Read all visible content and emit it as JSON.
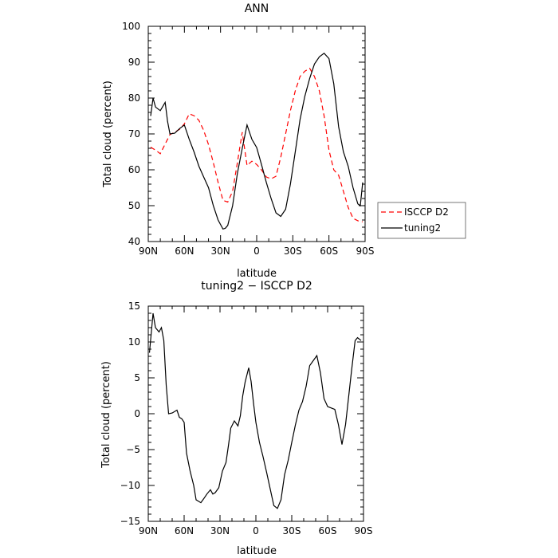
{
  "chart_data": [
    {
      "type": "line",
      "title": "ANN",
      "xlabel": "latitude",
      "ylabel": "Total cloud (percent)",
      "xlim": [
        90,
        -90
      ],
      "ylim": [
        40,
        100
      ],
      "x_ticks": [
        90,
        60,
        30,
        0,
        -30,
        -60,
        -90
      ],
      "x_tick_labels": [
        "90N",
        "60N",
        "30N",
        "0",
        "30S",
        "60S",
        "90S"
      ],
      "y_ticks": [
        40,
        50,
        60,
        70,
        80,
        90,
        100
      ],
      "y_tick_labels": [
        "40",
        "50",
        "60",
        "70",
        "80",
        "90",
        "100"
      ],
      "legend_position": "right",
      "series": [
        {
          "name": "ISCCP D2",
          "color": "#ff0000",
          "style": "dashed",
          "x": [
            88,
            84,
            80,
            76,
            72,
            68,
            64,
            60,
            56,
            52,
            48,
            44,
            40,
            36,
            32,
            28,
            24,
            20,
            16,
            12,
            8,
            4,
            0,
            -4,
            -8,
            -12,
            -16,
            -20,
            -24,
            -28,
            -32,
            -36,
            -40,
            -44,
            -48,
            -52,
            -56,
            -60,
            -64,
            -68,
            -72,
            -76,
            -80,
            -84,
            -88
          ],
          "values": [
            66.3,
            65.5,
            64.5,
            67.2,
            69.8,
            70.5,
            71.3,
            72.8,
            75.6,
            75.1,
            73.8,
            71.0,
            67.0,
            62.0,
            56.5,
            51.5,
            51.0,
            54.0,
            62.0,
            70.5,
            61.2,
            62.4,
            61.5,
            60.0,
            58.0,
            57.5,
            58.2,
            63.5,
            70.0,
            76.5,
            82.0,
            86.0,
            87.5,
            88.3,
            86.0,
            82.0,
            75.0,
            65.5,
            60.0,
            58.5,
            54.0,
            49.5,
            46.5,
            45.8,
            45.5
          ]
        },
        {
          "name": "tuning2",
          "color": "#000000",
          "style": "solid",
          "x": [
            88,
            86,
            84,
            80,
            76,
            74,
            72,
            68,
            64,
            60,
            56,
            52,
            48,
            44,
            40,
            36,
            32,
            28,
            26,
            24,
            20,
            16,
            12,
            8,
            4,
            0,
            -4,
            -8,
            -12,
            -16,
            -20,
            -24,
            -28,
            -32,
            -36,
            -40,
            -44,
            -48,
            -52,
            -56,
            -60,
            -64,
            -68,
            -72,
            -76,
            -80,
            -84,
            -86,
            -88
          ],
          "values": [
            75.0,
            80.0,
            77.5,
            76.5,
            78.8,
            73.5,
            70.0,
            70.2,
            71.5,
            72.5,
            68.5,
            65.0,
            61.0,
            58.0,
            55.0,
            50.0,
            46.0,
            43.5,
            43.7,
            44.5,
            50.0,
            59.0,
            66.0,
            72.5,
            68.5,
            66.2,
            61.5,
            56.5,
            52.0,
            48.0,
            47.0,
            49.0,
            56.0,
            65.0,
            74.0,
            80.5,
            85.5,
            89.5,
            91.5,
            92.5,
            91.0,
            84.0,
            72.0,
            65.0,
            61.0,
            55.0,
            50.5,
            50.0,
            56.5
          ]
        }
      ]
    },
    {
      "type": "line",
      "title": "tuning2 − ISCCP D2",
      "xlabel": "latitude",
      "ylabel": "Total cloud (percent)",
      "xlim": [
        90,
        -90
      ],
      "ylim": [
        -15,
        15
      ],
      "x_ticks": [
        90,
        60,
        30,
        0,
        -30,
        -60,
        -90
      ],
      "x_tick_labels": [
        "90N",
        "60N",
        "30N",
        "0",
        "30S",
        "60S",
        "90S"
      ],
      "y_ticks": [
        -15,
        -10,
        -5,
        0,
        5,
        10,
        15
      ],
      "y_tick_labels": [
        "−15",
        "−10",
        "−5",
        "0",
        "5",
        "10",
        "15"
      ],
      "series": [
        {
          "color": "#000000",
          "style": "solid",
          "x": [
            89,
            86,
            84,
            81,
            79,
            77,
            75,
            73,
            70,
            66,
            64,
            62,
            60,
            58,
            55,
            52,
            50,
            46,
            43,
            41,
            38,
            36,
            34,
            31,
            28,
            25,
            23,
            21,
            18,
            15,
            13,
            11,
            9,
            6,
            4,
            2,
            0,
            -3,
            -6,
            -9,
            -12,
            -15,
            -18,
            -21,
            -24,
            -27,
            -30,
            -33,
            -36,
            -39,
            -42,
            -45,
            -48,
            -51,
            -54,
            -57,
            -60,
            -63,
            -66,
            -69,
            -72,
            -75,
            -78,
            -80,
            -83,
            -85,
            -88
          ],
          "values": [
            8.5,
            14.0,
            12.0,
            11.4,
            12.0,
            10.2,
            4.0,
            0.0,
            0.1,
            0.5,
            -0.5,
            -0.7,
            -1.2,
            -5.5,
            -8.0,
            -10.0,
            -12.0,
            -12.4,
            -11.7,
            -11.2,
            -10.6,
            -11.2,
            -11.0,
            -10.3,
            -8.0,
            -6.8,
            -4.5,
            -2.0,
            -1.0,
            -1.7,
            -0.3,
            2.5,
            4.4,
            6.4,
            4.5,
            1.5,
            -1.2,
            -4.0,
            -6.0,
            -8.2,
            -10.5,
            -12.8,
            -13.2,
            -12.0,
            -8.5,
            -6.5,
            -4.0,
            -1.6,
            0.5,
            1.7,
            3.8,
            6.7,
            7.4,
            8.1,
            5.7,
            2.1,
            1.0,
            0.8,
            0.6,
            -1.5,
            -4.3,
            -1.5,
            3.0,
            6.0,
            10.2,
            10.6,
            10.2
          ]
        }
      ]
    }
  ]
}
